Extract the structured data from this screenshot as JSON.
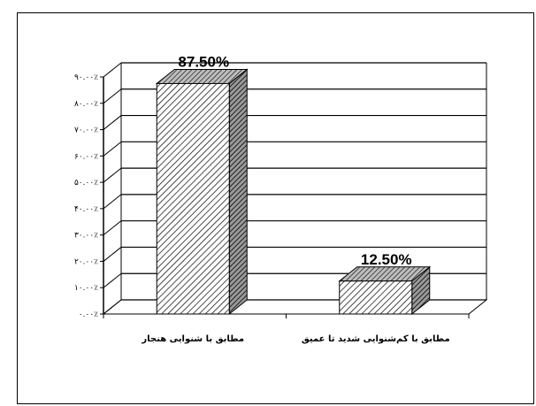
{
  "chart_data": {
    "type": "bar",
    "style": "3d",
    "categories": [
      "مطابق با شنوایی هنجار",
      "مطابق با کم‌شنوایی شدید تا عمیق"
    ],
    "values": [
      87.5,
      12.5
    ],
    "data_labels": [
      "87.50%",
      "12.50%"
    ],
    "y_ticks": [
      "۰.۰۰٪",
      "۱۰.۰۰٪",
      "۲۰.۰۰٪",
      "۳۰.۰۰٪",
      "۴۰.۰۰٪",
      "۵۰.۰۰٪",
      "۶۰.۰۰٪",
      "۷۰.۰۰٪",
      "۸۰.۰۰٪",
      "۹۰.۰۰٪"
    ],
    "y_tick_values": [
      0,
      10,
      20,
      30,
      40,
      50,
      60,
      70,
      80,
      90
    ],
    "ylim": [
      0,
      90
    ],
    "grid": true,
    "legend": "none",
    "title": "",
    "xlabel": "",
    "ylabel": "",
    "colors": {
      "bar_fill": "#ffffff",
      "hatch": "#000000",
      "side": "#555555"
    }
  }
}
